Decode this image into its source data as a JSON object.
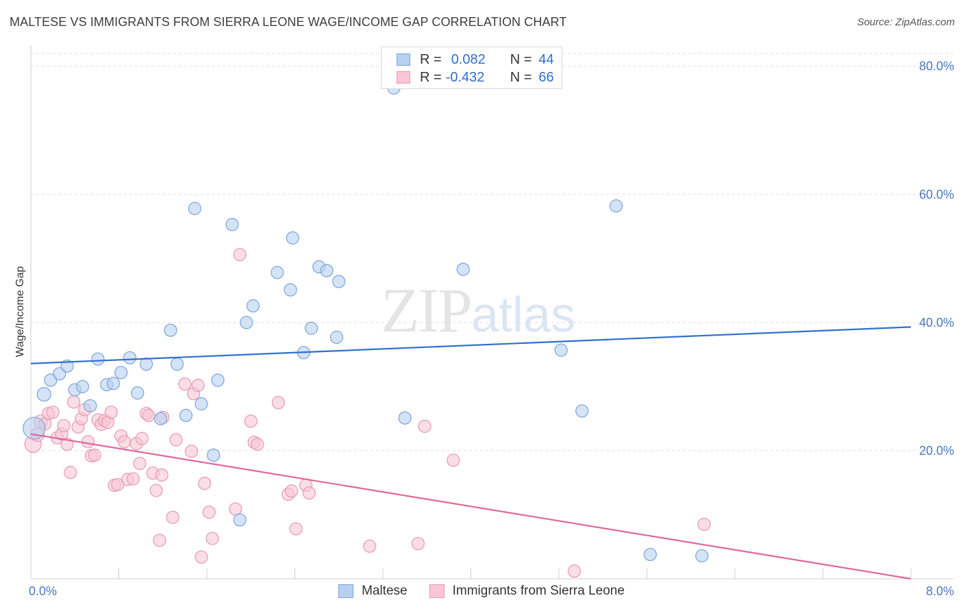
{
  "title": "MALTESE VS IMMIGRANTS FROM SIERRA LEONE WAGE/INCOME GAP CORRELATION CHART",
  "source": "Source: ZipAtlas.com",
  "watermark": {
    "zip": "ZIP",
    "atlas": "atlas"
  },
  "stats": [
    {
      "r_label": "R =",
      "r_value": "0.082",
      "n_label": "N =",
      "n_value": "44"
    },
    {
      "r_label": "R =",
      "r_value": "-0.432",
      "n_label": "N =",
      "n_value": "66"
    }
  ],
  "colors": {
    "blue_fill": "#b8d0f0",
    "blue_stroke": "#7aa3dc",
    "blue_line": "#2e6fce",
    "pink_fill": "#f9c6d6",
    "pink_stroke": "#e996b2",
    "pink_line": "#e0679a",
    "grid": "#dddddd",
    "tick_text": "#4a78c2"
  },
  "chart_data": {
    "type": "scatter",
    "title": "MALTESE VS IMMIGRANTS FROM SIERRA LEONE WAGE/INCOME GAP CORRELATION CHART",
    "xlabel": "",
    "ylabel": "Wage/Income Gap",
    "xlim": [
      0,
      8
    ],
    "ylim": [
      0,
      82
    ],
    "x_tick_labels": [
      "0.0%",
      "8.0%"
    ],
    "y_ticks": [
      20,
      40,
      60,
      80
    ],
    "y_tick_labels": [
      "20.0%",
      "40.0%",
      "60.0%",
      "80.0%"
    ],
    "grid": true,
    "legend_position": "bottom",
    "series": [
      {
        "name": "Maltese",
        "color": "#7aa3dc",
        "trend": {
          "x": [
            0,
            8
          ],
          "y": [
            33.6,
            39.3
          ]
        },
        "points": [
          {
            "x": 0.03,
            "y": 23.5,
            "r": 16
          },
          {
            "x": 0.12,
            "y": 28.8,
            "r": 10
          },
          {
            "x": 0.18,
            "y": 31.0,
            "r": 9
          },
          {
            "x": 0.26,
            "y": 32.0,
            "r": 9
          },
          {
            "x": 0.33,
            "y": 33.2,
            "r": 9
          },
          {
            "x": 0.4,
            "y": 29.5,
            "r": 9
          },
          {
            "x": 0.47,
            "y": 30.0,
            "r": 9
          },
          {
            "x": 0.54,
            "y": 27.0,
            "r": 9
          },
          {
            "x": 0.61,
            "y": 34.3,
            "r": 9
          },
          {
            "x": 0.69,
            "y": 30.3,
            "r": 9
          },
          {
            "x": 0.75,
            "y": 30.5,
            "r": 9
          },
          {
            "x": 0.82,
            "y": 32.2,
            "r": 9
          },
          {
            "x": 0.9,
            "y": 34.5,
            "r": 9
          },
          {
            "x": 0.97,
            "y": 29.0,
            "r": 9
          },
          {
            "x": 1.05,
            "y": 33.5,
            "r": 9
          },
          {
            "x": 1.18,
            "y": 25.0,
            "r": 9
          },
          {
            "x": 1.27,
            "y": 38.8,
            "r": 9
          },
          {
            "x": 1.33,
            "y": 33.5,
            "r": 9
          },
          {
            "x": 1.41,
            "y": 25.5,
            "r": 9
          },
          {
            "x": 1.49,
            "y": 57.8,
            "r": 9
          },
          {
            "x": 1.55,
            "y": 27.3,
            "r": 9
          },
          {
            "x": 1.66,
            "y": 19.3,
            "r": 9
          },
          {
            "x": 1.7,
            "y": 31.0,
            "r": 9
          },
          {
            "x": 1.83,
            "y": 55.3,
            "r": 9
          },
          {
            "x": 1.9,
            "y": 9.2,
            "r": 9
          },
          {
            "x": 1.96,
            "y": 40.0,
            "r": 9
          },
          {
            "x": 2.02,
            "y": 42.6,
            "r": 9
          },
          {
            "x": 2.24,
            "y": 47.8,
            "r": 9
          },
          {
            "x": 2.36,
            "y": 45.1,
            "r": 9
          },
          {
            "x": 2.38,
            "y": 53.2,
            "r": 9
          },
          {
            "x": 2.48,
            "y": 35.3,
            "r": 9
          },
          {
            "x": 2.55,
            "y": 39.1,
            "r": 9
          },
          {
            "x": 2.62,
            "y": 48.7,
            "r": 9
          },
          {
            "x": 2.69,
            "y": 48.1,
            "r": 9
          },
          {
            "x": 2.78,
            "y": 37.7,
            "r": 9
          },
          {
            "x": 2.8,
            "y": 46.4,
            "r": 9
          },
          {
            "x": 3.3,
            "y": 76.6,
            "r": 9
          },
          {
            "x": 3.4,
            "y": 25.1,
            "r": 9
          },
          {
            "x": 3.93,
            "y": 48.3,
            "r": 9
          },
          {
            "x": 4.82,
            "y": 35.7,
            "r": 9
          },
          {
            "x": 5.01,
            "y": 26.2,
            "r": 9
          },
          {
            "x": 5.32,
            "y": 58.2,
            "r": 9
          },
          {
            "x": 5.63,
            "y": 3.8,
            "r": 9
          },
          {
            "x": 6.1,
            "y": 3.6,
            "r": 9
          }
        ]
      },
      {
        "name": "Immigrants from Sierra Leone",
        "color": "#e996b2",
        "trend": {
          "x": [
            0,
            8
          ],
          "y": [
            22.6,
            0.0
          ]
        },
        "points": [
          {
            "x": 0.02,
            "y": 21.0,
            "r": 12
          },
          {
            "x": 0.06,
            "y": 22.5,
            "r": 10
          },
          {
            "x": 0.09,
            "y": 24.5,
            "r": 10
          },
          {
            "x": 0.13,
            "y": 24.2,
            "r": 9
          },
          {
            "x": 0.16,
            "y": 25.8,
            "r": 9
          },
          {
            "x": 0.2,
            "y": 26.0,
            "r": 9
          },
          {
            "x": 0.24,
            "y": 22.0,
            "r": 9
          },
          {
            "x": 0.28,
            "y": 22.6,
            "r": 9
          },
          {
            "x": 0.3,
            "y": 23.9,
            "r": 9
          },
          {
            "x": 0.33,
            "y": 21.0,
            "r": 9
          },
          {
            "x": 0.36,
            "y": 16.6,
            "r": 9
          },
          {
            "x": 0.39,
            "y": 27.6,
            "r": 9
          },
          {
            "x": 0.43,
            "y": 23.7,
            "r": 9
          },
          {
            "x": 0.46,
            "y": 25.0,
            "r": 9
          },
          {
            "x": 0.49,
            "y": 26.4,
            "r": 9
          },
          {
            "x": 0.52,
            "y": 21.4,
            "r": 9
          },
          {
            "x": 0.55,
            "y": 19.2,
            "r": 9
          },
          {
            "x": 0.58,
            "y": 19.3,
            "r": 9
          },
          {
            "x": 0.61,
            "y": 24.8,
            "r": 9
          },
          {
            "x": 0.64,
            "y": 24.1,
            "r": 9
          },
          {
            "x": 0.67,
            "y": 24.7,
            "r": 9
          },
          {
            "x": 0.7,
            "y": 24.4,
            "r": 9
          },
          {
            "x": 0.73,
            "y": 26.0,
            "r": 9
          },
          {
            "x": 0.76,
            "y": 14.6,
            "r": 9
          },
          {
            "x": 0.79,
            "y": 14.7,
            "r": 9
          },
          {
            "x": 0.82,
            "y": 22.3,
            "r": 9
          },
          {
            "x": 0.85,
            "y": 21.4,
            "r": 9
          },
          {
            "x": 0.88,
            "y": 15.5,
            "r": 9
          },
          {
            "x": 0.93,
            "y": 15.6,
            "r": 9
          },
          {
            "x": 0.96,
            "y": 21.1,
            "r": 9
          },
          {
            "x": 0.99,
            "y": 18.0,
            "r": 9
          },
          {
            "x": 1.01,
            "y": 21.9,
            "r": 9
          },
          {
            "x": 1.05,
            "y": 25.8,
            "r": 9
          },
          {
            "x": 1.07,
            "y": 25.5,
            "r": 9
          },
          {
            "x": 1.11,
            "y": 16.5,
            "r": 9
          },
          {
            "x": 1.14,
            "y": 13.8,
            "r": 9
          },
          {
            "x": 1.17,
            "y": 6.0,
            "r": 9
          },
          {
            "x": 1.19,
            "y": 16.2,
            "r": 9
          },
          {
            "x": 1.29,
            "y": 9.6,
            "r": 9
          },
          {
            "x": 1.32,
            "y": 21.7,
            "r": 9
          },
          {
            "x": 1.4,
            "y": 30.4,
            "r": 9
          },
          {
            "x": 1.46,
            "y": 19.9,
            "r": 9
          },
          {
            "x": 1.48,
            "y": 28.9,
            "r": 9
          },
          {
            "x": 1.52,
            "y": 30.2,
            "r": 9
          },
          {
            "x": 1.55,
            "y": 3.4,
            "r": 9
          },
          {
            "x": 1.58,
            "y": 14.9,
            "r": 9
          },
          {
            "x": 1.62,
            "y": 10.4,
            "r": 9
          },
          {
            "x": 1.65,
            "y": 6.3,
            "r": 9
          },
          {
            "x": 1.86,
            "y": 10.9,
            "r": 9
          },
          {
            "x": 1.9,
            "y": 50.6,
            "r": 9
          },
          {
            "x": 2.0,
            "y": 24.6,
            "r": 9
          },
          {
            "x": 2.03,
            "y": 21.3,
            "r": 9
          },
          {
            "x": 2.06,
            "y": 21.0,
            "r": 9
          },
          {
            "x": 2.25,
            "y": 27.5,
            "r": 9
          },
          {
            "x": 2.34,
            "y": 13.2,
            "r": 9
          },
          {
            "x": 2.37,
            "y": 13.7,
            "r": 9
          },
          {
            "x": 2.41,
            "y": 7.8,
            "r": 9
          },
          {
            "x": 2.5,
            "y": 14.6,
            "r": 9
          },
          {
            "x": 2.53,
            "y": 13.4,
            "r": 9
          },
          {
            "x": 3.08,
            "y": 5.1,
            "r": 9
          },
          {
            "x": 3.52,
            "y": 5.5,
            "r": 9
          },
          {
            "x": 3.58,
            "y": 23.8,
            "r": 9
          },
          {
            "x": 3.84,
            "y": 18.5,
            "r": 9
          },
          {
            "x": 4.94,
            "y": 1.2,
            "r": 9
          },
          {
            "x": 6.12,
            "y": 8.5,
            "r": 9
          },
          {
            "x": 1.2,
            "y": 25.2,
            "r": 9
          }
        ]
      }
    ]
  }
}
